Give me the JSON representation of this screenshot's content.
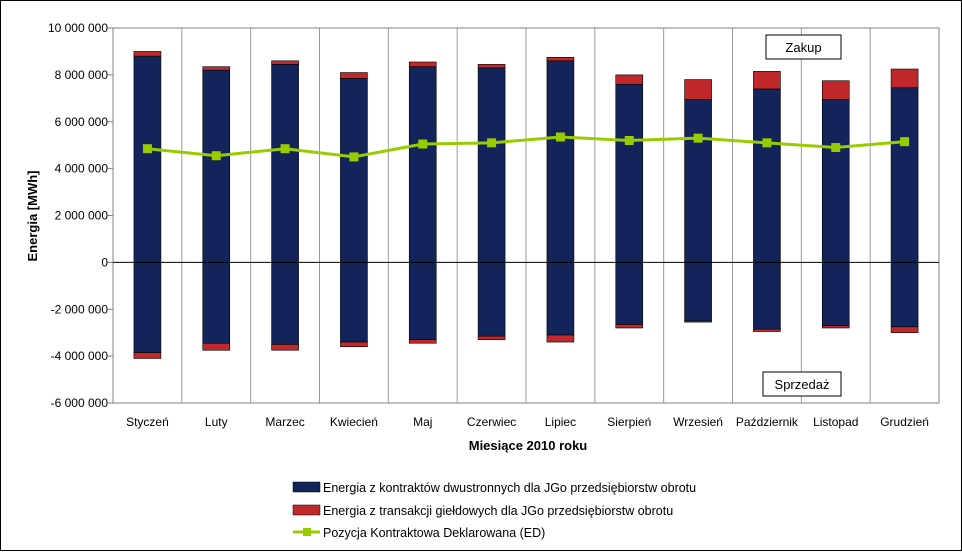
{
  "chart_data": {
    "type": "bar",
    "stacked": true,
    "xlabel": "Miesiące 2010  roku",
    "ylabel": "Energia [MWh]",
    "ylim": [
      -6000000,
      10000000
    ],
    "ytick_values": [
      10000000,
      8000000,
      6000000,
      4000000,
      2000000,
      0,
      -2000000,
      -4000000,
      -6000000
    ],
    "ytick_labels": [
      "10 000 000",
      "8 000 000",
      "6 000 000",
      "4 000 000",
      "2 000 000",
      "0",
      "-2 000 000",
      "-4 000 000",
      "-6 000 000"
    ],
    "categories": [
      "Styczeń",
      "Luty",
      "Marzec",
      "Kwiecień",
      "Maj",
      "Czerwiec",
      "Lipiec",
      "Sierpień",
      "Wrzesień",
      "Październik",
      "Listopad",
      "Grudzień"
    ],
    "series": [
      {
        "name": "Energia z kontraktów dwustronnych dla JGo przedsiębiorstw obrotu",
        "color": "#13245a",
        "purchase": [
          8800000,
          8200000,
          8450000,
          7850000,
          8350000,
          8300000,
          8600000,
          7600000,
          6950000,
          7400000,
          6950000,
          7450000
        ],
        "sale": [
          -3850000,
          -3450000,
          -3500000,
          -3400000,
          -3300000,
          -3150000,
          -3100000,
          -2650000,
          -2500000,
          -2850000,
          -2700000,
          -2750000
        ]
      },
      {
        "name": "Energia z transakcji giełdowych dla JGo przedsiębiorstw obrotu",
        "color": "#c0282b",
        "purchase": [
          200000,
          150000,
          150000,
          250000,
          200000,
          150000,
          150000,
          400000,
          850000,
          750000,
          800000,
          800000
        ],
        "sale": [
          -250000,
          -300000,
          -250000,
          -200000,
          -150000,
          -150000,
          -300000,
          -150000,
          -50000,
          -100000,
          -100000,
          -250000
        ]
      },
      {
        "name": "Pozycja Kontraktowa Deklarowana  (ED)",
        "type": "line",
        "color": "#99cc00",
        "values": [
          4850000,
          4550000,
          4850000,
          4500000,
          5050000,
          5100000,
          5350000,
          5200000,
          5300000,
          5100000,
          4900000,
          5150000
        ]
      }
    ],
    "annotations": [
      "Zakup",
      "Sprzedaż"
    ],
    "grid": "vertical category separators",
    "legend_position": "bottom"
  }
}
